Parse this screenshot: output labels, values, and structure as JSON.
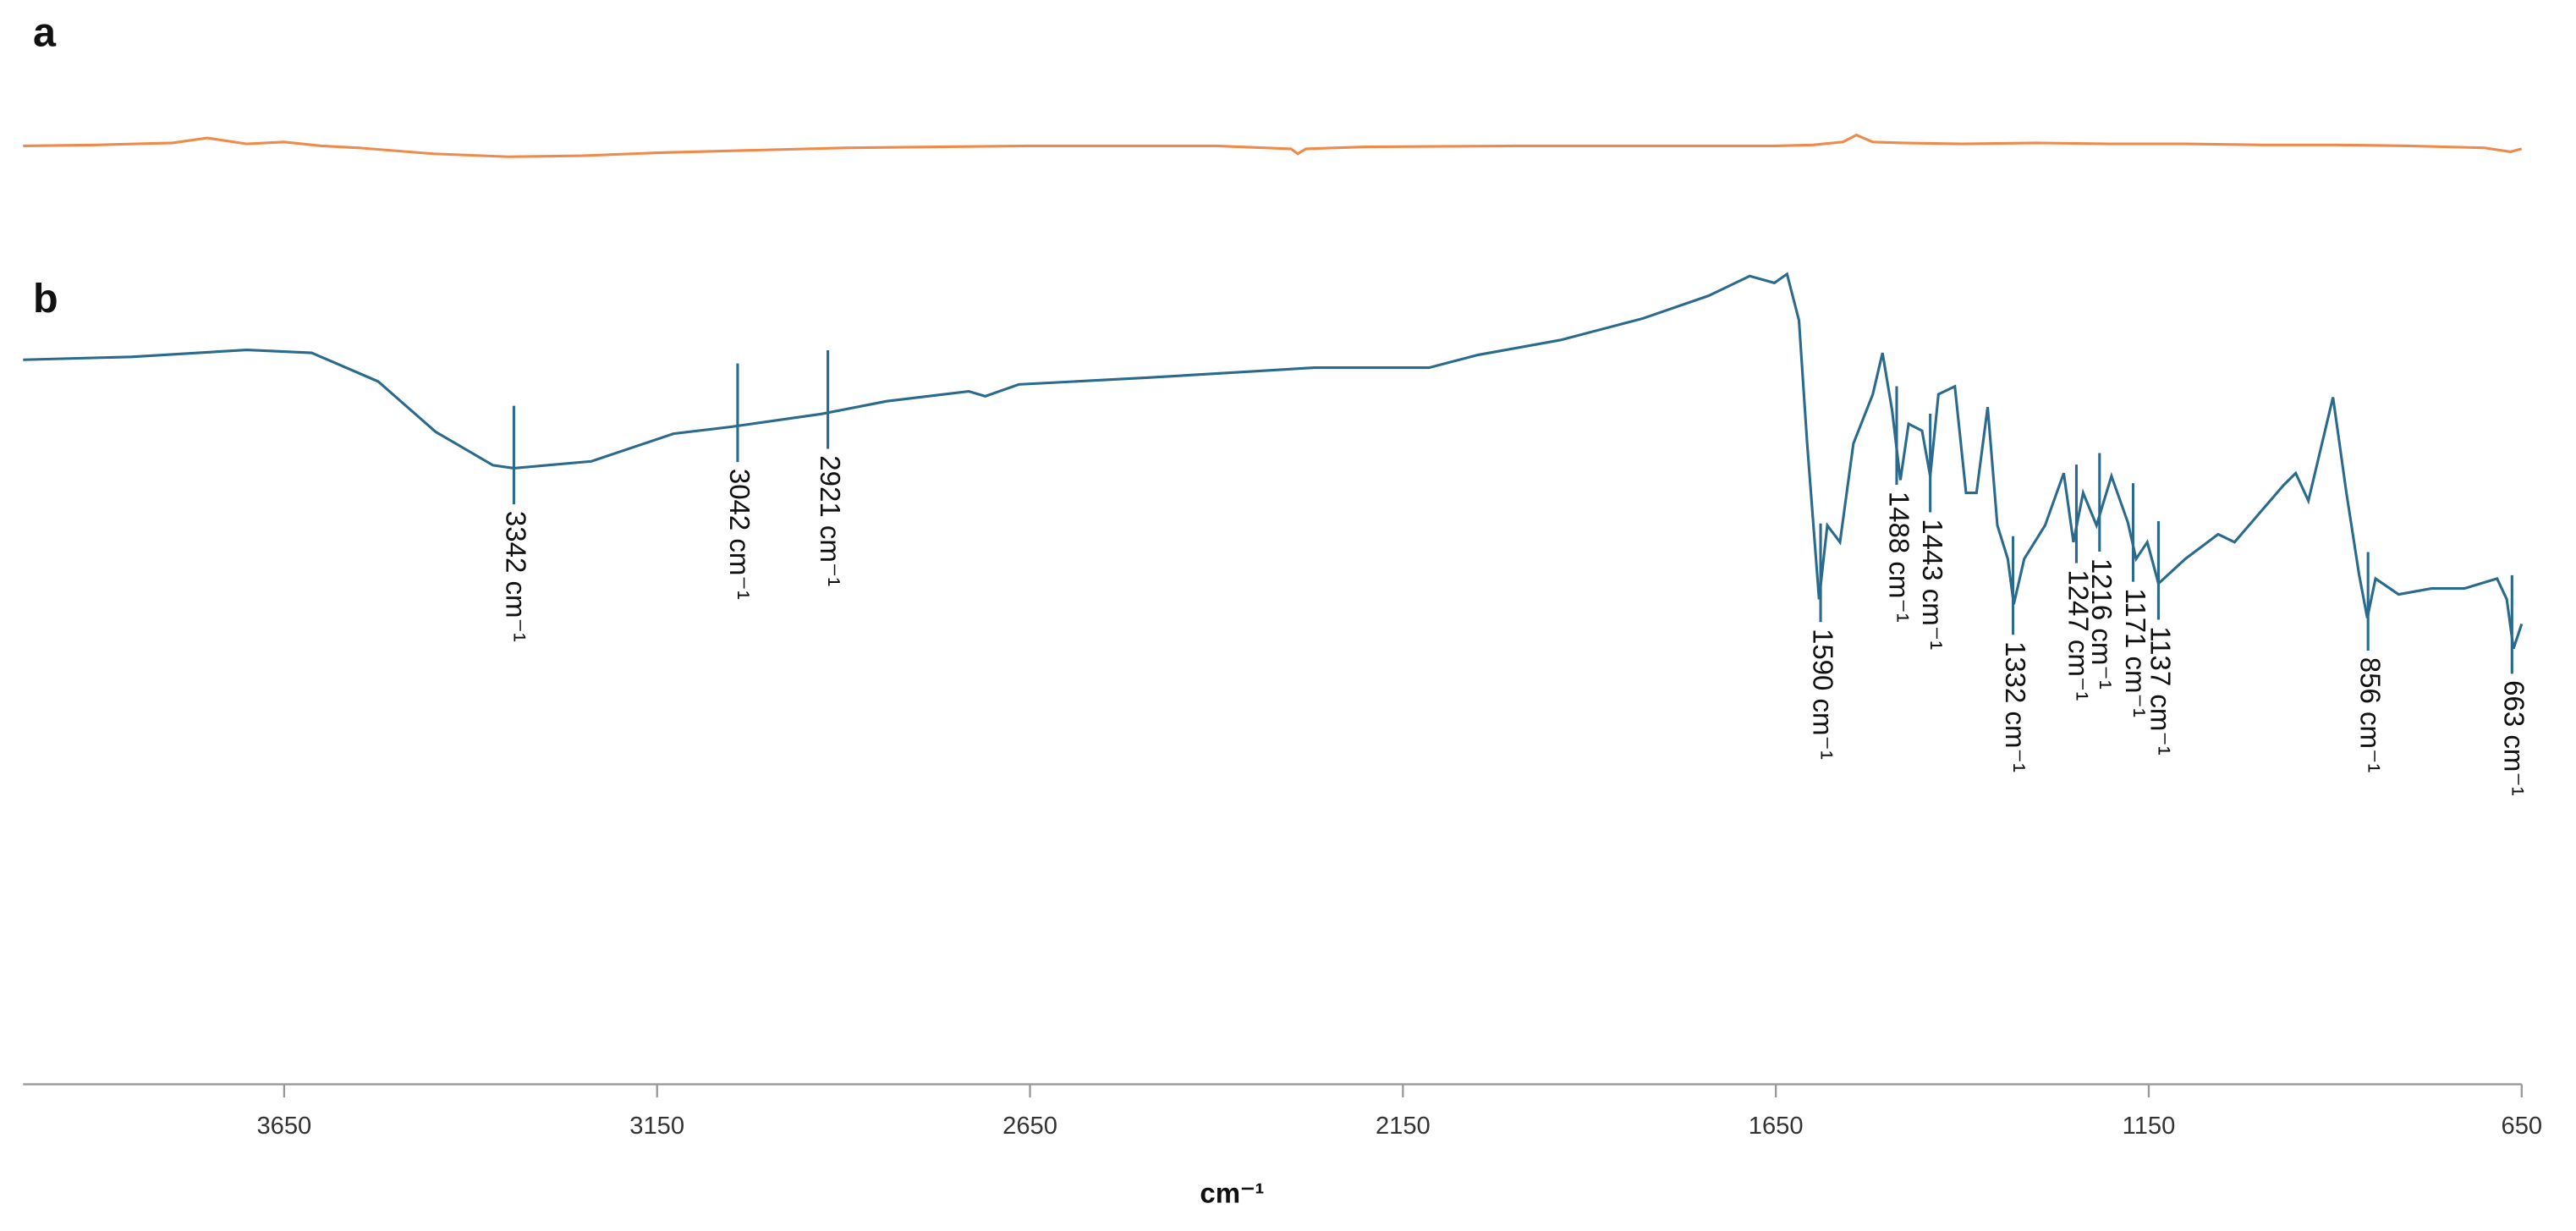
{
  "chart_data": {
    "type": "line",
    "x_label": "cm⁻¹",
    "xlim": [
      4000,
      650
    ],
    "xticks": [
      3650,
      3150,
      2650,
      2150,
      1650,
      1150,
      650
    ],
    "ylim": [
      0,
      100
    ],
    "grid": false,
    "series": [
      {
        "name": "a",
        "color": "#f08a4b",
        "x": [
          4000,
          3900,
          3800,
          3753,
          3700,
          3650,
          3600,
          3550,
          3450,
          3350,
          3250,
          3150,
          2900,
          2650,
          2400,
          2300,
          2291,
          2280,
          2200,
          2000,
          1800,
          1650,
          1600,
          1560,
          1542,
          1520,
          1480,
          1400,
          1300,
          1200,
          1100,
          1000,
          900,
          800,
          700,
          665,
          650
        ],
        "values": [
          95.2,
          95.3,
          95.5,
          96.0,
          95.4,
          95.6,
          95.2,
          95.0,
          94.4,
          94.1,
          94.2,
          94.5,
          95.0,
          95.2,
          95.2,
          94.9,
          94.4,
          94.9,
          95.1,
          95.2,
          95.2,
          95.2,
          95.3,
          95.6,
          96.3,
          95.6,
          95.5,
          95.4,
          95.5,
          95.4,
          95.4,
          95.3,
          95.3,
          95.2,
          95.0,
          94.6,
          94.9
        ]
      },
      {
        "name": "b",
        "color": "#2a6a8c",
        "x": [
          4000,
          3855,
          3700,
          3613,
          3524,
          3447,
          3370,
          3342,
          3238,
          3128,
          3051,
          2930,
          2842,
          2732,
          2710,
          2665,
          2489,
          2269,
          2115,
          2049,
          1939,
          1828,
          1740,
          1685,
          1652,
          1635,
          1619,
          1608,
          1592,
          1581,
          1564,
          1546,
          1520,
          1507,
          1494,
          1483,
          1472,
          1454,
          1443,
          1432,
          1410,
          1395,
          1381,
          1366,
          1353,
          1339,
          1331,
          1317,
          1289,
          1264,
          1251,
          1238,
          1220,
          1200,
          1178,
          1167,
          1152,
          1137,
          1101,
          1057,
          1035,
          969,
          953,
          936,
          903,
          885,
          868,
          857,
          846,
          815,
          771,
          727,
          683,
          670,
          661,
          650
        ],
        "values": [
          73.5,
          73.8,
          74.5,
          74.2,
          71.3,
          66.2,
          62.8,
          62.5,
          63.2,
          66.0,
          66.7,
          68.0,
          69.3,
          70.3,
          69.8,
          71.0,
          71.7,
          72.7,
          72.7,
          74.0,
          75.5,
          77.7,
          80.0,
          82.0,
          81.3,
          82.2,
          77.5,
          65.0,
          49.2,
          56.7,
          55.0,
          65.0,
          70.0,
          74.2,
          68.3,
          61.3,
          67.0,
          66.3,
          61.7,
          70.0,
          70.8,
          60.0,
          60.0,
          68.7,
          56.7,
          53.3,
          48.7,
          53.3,
          56.7,
          62.0,
          55.0,
          60.0,
          56.7,
          61.7,
          57.0,
          53.3,
          55.0,
          50.8,
          53.3,
          55.8,
          55.0,
          60.8,
          62.0,
          59.2,
          69.7,
          60.0,
          51.7,
          47.3,
          51.3,
          49.7,
          50.3,
          50.3,
          51.3,
          49.2,
          44.2,
          46.7
        ],
        "annotations": [
          {
            "x": 3342,
            "label": "3342 cm⁻¹"
          },
          {
            "x": 3042,
            "label": "3042 cm⁻¹"
          },
          {
            "x": 2921,
            "label": "2921 cm⁻¹"
          },
          {
            "x": 1590,
            "label": "1590 cm⁻¹"
          },
          {
            "x": 1488,
            "label": "1488 cm⁻¹"
          },
          {
            "x": 1443,
            "label": "1443 cm⁻¹"
          },
          {
            "x": 1332,
            "label": "1332 cm⁻¹"
          },
          {
            "x": 1247,
            "label": "1247 cm⁻¹"
          },
          {
            "x": 1216,
            "label": "1216 cm⁻¹"
          },
          {
            "x": 1171,
            "label": "1171 cm⁻¹"
          },
          {
            "x": 1137,
            "label": "1137 cm⁻¹"
          },
          {
            "x": 856,
            "label": "856 cm⁻¹"
          },
          {
            "x": 663,
            "label": "663 cm⁻¹"
          }
        ]
      }
    ]
  }
}
